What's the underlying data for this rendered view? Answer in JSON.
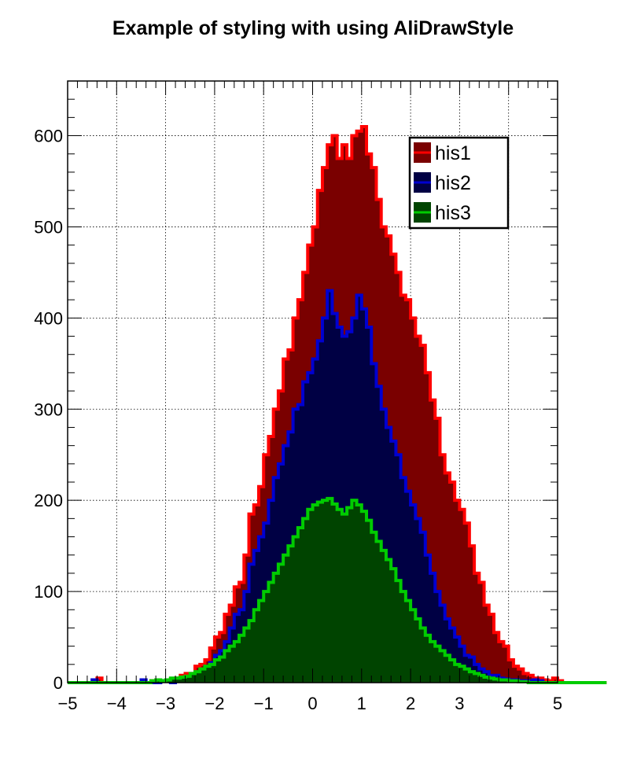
{
  "chart_data": {
    "type": "bar",
    "title": "Example of styling with using AliDrawStyle",
    "xlabel": "",
    "ylabel": "",
    "xlim": [
      -5,
      5
    ],
    "ylim": [
      0,
      660
    ],
    "bin_width": 0.1,
    "grid": true,
    "legend_placement": "top-right",
    "x_ticks": [
      "−5",
      "−4",
      "−3",
      "−2",
      "−1",
      "0",
      "1",
      "2",
      "3",
      "4",
      "5"
    ],
    "y_ticks": [
      "0",
      "100",
      "200",
      "300",
      "400",
      "500",
      "600"
    ],
    "series": [
      {
        "name": "his1",
        "line_color": "#ff0000",
        "fill_color": "#7a0000",
        "values": [
          0,
          0,
          0,
          0,
          0,
          0,
          5,
          0,
          0,
          0,
          0,
          0,
          0,
          0,
          0,
          0,
          0,
          2,
          2,
          2,
          2,
          4,
          5,
          8,
          10,
          10,
          18,
          20,
          25,
          38,
          50,
          55,
          75,
          85,
          105,
          110,
          140,
          185,
          195,
          215,
          250,
          270,
          300,
          320,
          355,
          365,
          400,
          420,
          450,
          480,
          500,
          540,
          565,
          590,
          600,
          575,
          590,
          575,
          600,
          605,
          610,
          580,
          565,
          530,
          500,
          490,
          470,
          450,
          425,
          420,
          400,
          380,
          370,
          340,
          310,
          290,
          250,
          230,
          220,
          200,
          190,
          175,
          150,
          120,
          110,
          85,
          75,
          55,
          45,
          40,
          25,
          18,
          15,
          10,
          8,
          5,
          5,
          3,
          2,
          5,
          2,
          0,
          0,
          0,
          0,
          0,
          0,
          0,
          0,
          0
        ]
      },
      {
        "name": "his2",
        "line_color": "#0000d0",
        "fill_color": "#000044",
        "values": [
          0,
          0,
          0,
          0,
          0,
          3,
          0,
          0,
          0,
          0,
          0,
          0,
          0,
          0,
          0,
          3,
          0,
          0,
          0,
          2,
          2,
          0,
          3,
          3,
          5,
          5,
          10,
          12,
          18,
          22,
          30,
          35,
          45,
          60,
          75,
          80,
          100,
          130,
          145,
          160,
          175,
          200,
          225,
          240,
          260,
          275,
          300,
          305,
          330,
          340,
          355,
          375,
          400,
          430,
          405,
          390,
          380,
          385,
          400,
          425,
          410,
          390,
          350,
          325,
          300,
          280,
          265,
          250,
          225,
          210,
          195,
          180,
          165,
          140,
          120,
          100,
          85,
          70,
          60,
          50,
          40,
          30,
          28,
          20,
          15,
          12,
          8,
          8,
          5,
          4,
          3,
          3,
          2,
          2,
          2,
          3,
          2,
          0,
          0,
          0,
          0,
          0,
          0,
          0,
          0,
          0
        ]
      },
      {
        "name": "his3",
        "line_color": "#00cc00",
        "fill_color": "#004400",
        "values": [
          0,
          0,
          0,
          0,
          0,
          0,
          0,
          0,
          0,
          0,
          0,
          0,
          0,
          0,
          0,
          0,
          0,
          2,
          3,
          2,
          3,
          5,
          5,
          6,
          7,
          10,
          12,
          15,
          18,
          20,
          25,
          28,
          35,
          40,
          45,
          52,
          60,
          68,
          80,
          90,
          100,
          110,
          120,
          130,
          140,
          150,
          160,
          170,
          180,
          190,
          195,
          198,
          200,
          202,
          196,
          190,
          185,
          192,
          200,
          195,
          188,
          178,
          165,
          155,
          145,
          135,
          125,
          112,
          100,
          90,
          80,
          70,
          60,
          52,
          45,
          40,
          35,
          30,
          25,
          20,
          18,
          15,
          12,
          10,
          8,
          6,
          5,
          4,
          3,
          3,
          2,
          2,
          1,
          1,
          0,
          0,
          0,
          0,
          0,
          0,
          0,
          0,
          0,
          0,
          0,
          0,
          0,
          0,
          0,
          0
        ]
      }
    ]
  }
}
